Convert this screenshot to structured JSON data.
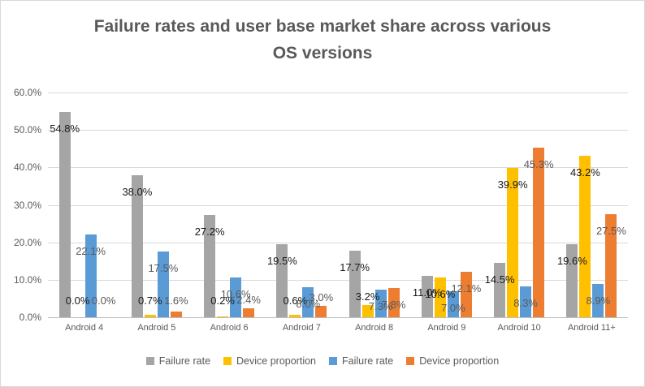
{
  "window": {
    "background": "#FFFFFF",
    "border_color": "#D9D9D9"
  },
  "chart_data": {
    "type": "bar",
    "title": "Failure rates and user base market share across various OS versions",
    "categories": [
      "Android 4",
      "Android 5",
      "Android 6",
      "Android 7",
      "Android 8",
      "Android 9",
      "Android 10",
      "Android 11+"
    ],
    "series": [
      {
        "name": "Failure rate",
        "color": "#A5A5A5",
        "label_color": "#1A1A1A",
        "values": [
          54.8,
          38.0,
          27.2,
          19.5,
          17.7,
          11.0,
          14.5,
          19.6
        ],
        "labels": [
          "54.8%",
          "38.0%",
          "27.2%",
          "19.5%",
          "17.7%",
          "11.0%",
          "14.5%",
          "19.6%"
        ]
      },
      {
        "name": "Device proportion",
        "color": "#FFC000",
        "label_color": "#1A1A1A",
        "values": [
          0.0,
          0.7,
          0.2,
          0.6,
          3.2,
          10.6,
          39.9,
          43.2
        ],
        "labels": [
          "0.0%",
          "0.7%",
          "0.2%",
          "0.6%",
          "3.2%",
          "10.6%",
          "39.9%",
          "43.2%"
        ]
      },
      {
        "name": "Failure rate",
        "color": "#5B9BD5",
        "label_color": "#595959",
        "values": [
          22.1,
          17.5,
          10.6,
          8.0,
          7.3,
          7.0,
          8.3,
          8.9
        ],
        "labels": [
          "22.1%",
          "17.5%",
          "10.6%",
          "8.0%",
          "7.3%",
          "7.0%",
          "8.3%",
          "8.9%"
        ]
      },
      {
        "name": "Device proportion",
        "color": "#ED7D31",
        "label_color": "#595959",
        "values": [
          0.0,
          1.6,
          2.4,
          3.0,
          7.8,
          12.1,
          45.3,
          27.5
        ],
        "labels": [
          "0.0%",
          "1.6%",
          "2.4%",
          "3.0%",
          "7.8%",
          "12.1%",
          "45.3%",
          "27.5%"
        ]
      }
    ],
    "ylim": [
      0,
      60
    ],
    "y_ticks": [
      "0.0%",
      "10.0%",
      "20.0%",
      "30.0%",
      "40.0%",
      "50.0%",
      "60.0%"
    ],
    "grid": true,
    "legend_position": "bottom"
  }
}
